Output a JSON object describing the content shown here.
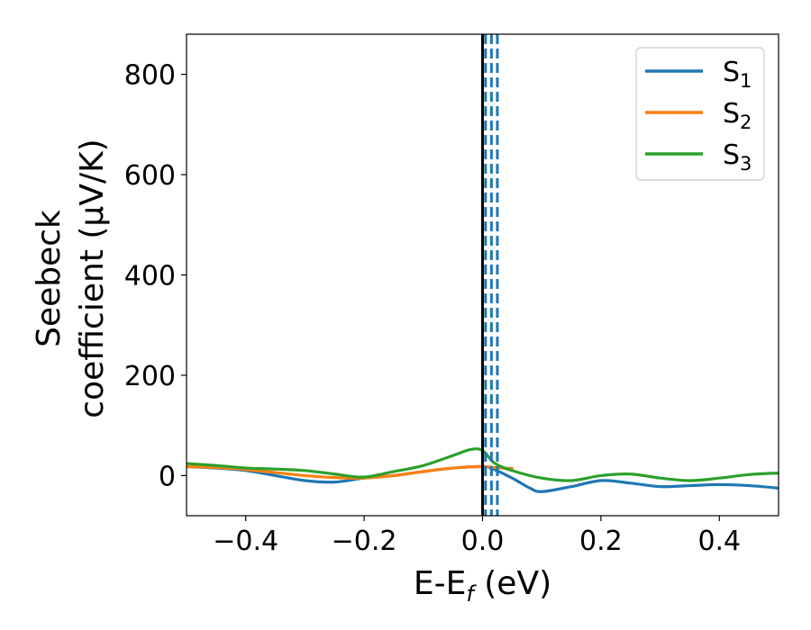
{
  "chart_data": {
    "type": "line",
    "xlabel": "E-E",
    "xlabel_sub": "f",
    "xlabel_unit": " (eV)",
    "ylabel_line1": "Seebeck",
    "ylabel_line2": "coefficient  (μV/K)",
    "xlim": [
      -0.5,
      0.5
    ],
    "ylim": [
      -80,
      880
    ],
    "xticks": [
      -0.4,
      -0.2,
      0.0,
      0.2,
      0.4
    ],
    "xtick_labels": [
      "−0.4",
      "−0.2",
      "0.0",
      "0.2",
      "0.4"
    ],
    "yticks": [
      0,
      200,
      400,
      600,
      800
    ],
    "ytick_labels": [
      "0",
      "200",
      "400",
      "600",
      "800"
    ],
    "grid": false,
    "legend_position": "top-right",
    "colors": {
      "S1": "#1f77b4",
      "S2": "#ff7f0e",
      "S3": "#2ca02c",
      "fermi_line": "#000000"
    },
    "vertical_lines": {
      "solid": {
        "x": 0.0,
        "color": "#000000"
      },
      "dashed": {
        "x": [
          0.005,
          0.015,
          0.025
        ],
        "color": "#1f77b4"
      }
    },
    "series": [
      {
        "name": "S",
        "sub": "1",
        "color": "#1f77b4",
        "x": [
          -0.5,
          -0.45,
          -0.4,
          -0.35,
          -0.3,
          -0.25,
          -0.2,
          -0.15,
          -0.1,
          -0.05,
          0.0,
          0.02,
          0.05,
          0.08,
          0.1,
          0.15,
          0.2,
          0.25,
          0.3,
          0.35,
          0.4,
          0.45,
          0.5
        ],
        "values": [
          18,
          15,
          10,
          0,
          -10,
          -13,
          -5,
          0,
          8,
          15,
          18,
          12,
          -5,
          -25,
          -32,
          -22,
          -10,
          -15,
          -22,
          -20,
          -18,
          -20,
          -25
        ]
      },
      {
        "name": "S",
        "sub": "2",
        "color": "#ff7f0e",
        "x": [
          -0.5,
          -0.45,
          -0.4,
          -0.35,
          -0.3,
          -0.25,
          -0.2,
          -0.15,
          -0.1,
          -0.05,
          0.0,
          0.02,
          0.05
        ],
        "values": [
          18,
          16,
          12,
          6,
          0,
          -4,
          -5,
          0,
          8,
          15,
          18,
          16,
          14
        ]
      },
      {
        "name": "S",
        "sub": "3",
        "color": "#2ca02c",
        "x": [
          -0.5,
          -0.45,
          -0.4,
          -0.35,
          -0.3,
          -0.25,
          -0.2,
          -0.15,
          -0.1,
          -0.05,
          -0.02,
          0.0,
          0.02,
          0.05,
          0.1,
          0.15,
          0.2,
          0.25,
          0.3,
          0.35,
          0.4,
          0.45,
          0.5
        ],
        "values": [
          24,
          20,
          15,
          13,
          10,
          3,
          -3,
          8,
          20,
          40,
          52,
          50,
          25,
          10,
          -5,
          -10,
          0,
          3,
          -5,
          -10,
          -5,
          2,
          5
        ]
      }
    ]
  }
}
